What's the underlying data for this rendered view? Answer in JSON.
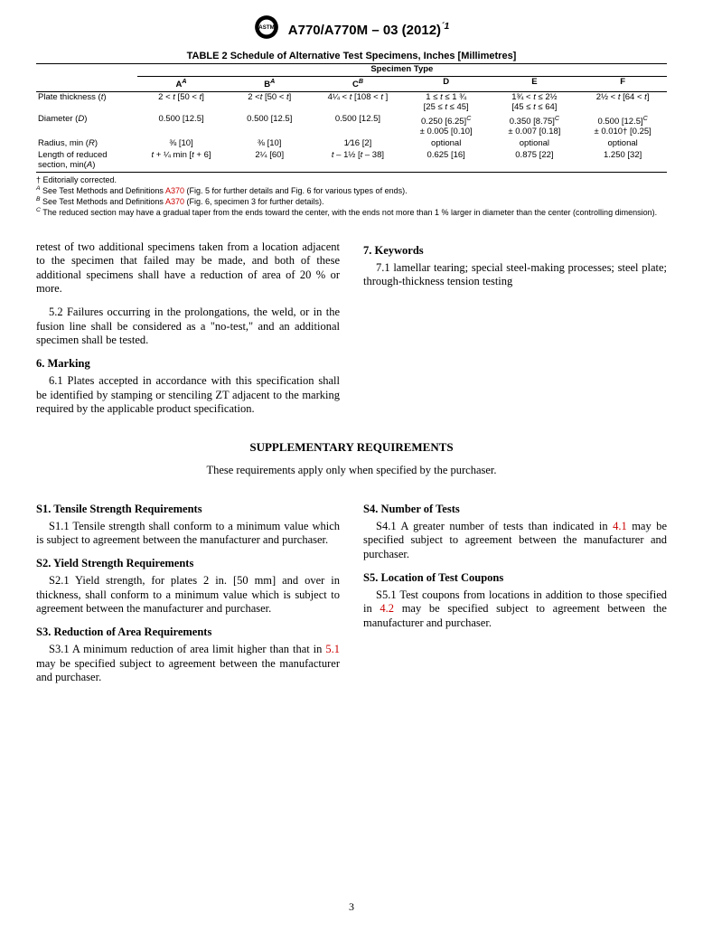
{
  "header": {
    "designation": "A770/A770M – 03 (2012)",
    "epsilon": "´1"
  },
  "table": {
    "title": "TABLE 2 Schedule of Alternative Test Specimens, Inches [Millimetres]",
    "group_header": "Specimen Type",
    "cols": [
      "A",
      "B",
      "C",
      "D",
      "E",
      "F"
    ],
    "col_sup": [
      "A",
      "A",
      "B",
      "",
      "",
      ""
    ],
    "rows": [
      {
        "label": "Plate thickness (t)",
        "label_ital": "t",
        "vals": [
          "2 < t [50 < t]",
          "2 <t [50 < t]",
          "4¼ < t [108 < t ]",
          "1 ≤ t ≤ 1 ¾",
          "1¾ < t ≤ 2½",
          "2½ < t [64 < t]"
        ],
        "sub": [
          "",
          "",
          "",
          "[25 ≤ t ≤ 45]",
          "[45 ≤ t ≤ 64]",
          ""
        ]
      },
      {
        "label": "Diameter (D)",
        "label_ital": "D",
        "vals": [
          "0.500 [12.5]",
          "0.500 [12.5]",
          "0.500 [12.5]",
          "0.250 [6.25]ᶜ",
          "0.350 [8.75]ᶜ",
          "0.500 [12.5]ᶜ"
        ],
        "sub": [
          "",
          "",
          "",
          "± 0.005 [0.10]",
          "± 0.007 [0.18]",
          "± 0.010† [0.25]"
        ]
      },
      {
        "label": "Radius, min (R)",
        "label_ital": "R",
        "vals": [
          "⅜ [10]",
          "⅜ [10]",
          "1⁄16 [2]",
          "optional",
          "optional",
          "optional"
        ],
        "sub": [
          "",
          "",
          "",
          "",
          "",
          ""
        ]
      },
      {
        "label": "Length of reduced section, min(A)",
        "label_ital": "A",
        "vals": [
          "t + ¼ min [t + 6]",
          "2¼ [60]",
          "t – 1½ [t – 38]",
          "0.625 [16]",
          "0.875 [22]",
          "1.250 [32]"
        ],
        "sub": [
          "",
          "",
          "",
          "",
          "",
          ""
        ]
      }
    ]
  },
  "footnotes": {
    "dagger": "† Editorially corrected.",
    "a": " See Test Methods and Definitions ",
    "a_ref": "A370",
    "a_tail": " (Fig. 5 for further details and Fig. 6 for various types of ends).",
    "b": " See Test Methods and Definitions ",
    "b_ref": "A370",
    "b_tail": " (Fig. 6, specimen 3 for further details).",
    "c": " The reduced section may have a gradual taper from the ends toward the center, with the ends not more than 1 % larger in diameter than the center (controlling dimension)."
  },
  "body": {
    "left": {
      "p1": "retest of two additional specimens taken from a location adjacent to the specimen that failed may be made, and both of these additional specimens shall have a reduction of area of 20 % or more.",
      "p2": "5.2 Failures occurring in the prolongations, the weld, or in the fusion line shall be considered as a \"no-test,\" and an additional specimen shall be tested.",
      "h6": "6. Marking",
      "p3": "6.1 Plates accepted in accordance with this specification shall be identified by stamping or stenciling ZT adjacent to the marking required by the applicable product specification."
    },
    "right": {
      "h7": "7. Keywords",
      "p1": "7.1 lamellar tearing; special steel-making processes; steel plate; through-thickness tension testing"
    }
  },
  "supplementary": {
    "title": "SUPPLEMENTARY REQUIREMENTS",
    "intro": "These requirements apply only when specified by the purchaser.",
    "left": {
      "s1h": "S1. Tensile Strength Requirements",
      "s1p": "S1.1 Tensile strength shall conform to a minimum value which is subject to agreement between the manufacturer and purchaser.",
      "s2h": "S2. Yield Strength Requirements",
      "s2p": "S2.1 Yield strength, for plates 2 in. [50 mm] and over in thickness, shall conform to a minimum value which is subject to agreement between the manufacturer and purchaser.",
      "s3h": "S3. Reduction of Area Requirements",
      "s3p_a": "S3.1 A minimum reduction of area limit higher than that in ",
      "s3ref": "5.1",
      "s3p_b": " may be specified subject to agreement between the manufacturer and purchaser."
    },
    "right": {
      "s4h": "S4. Number of Tests",
      "s4p_a": "S4.1 A greater number of tests than indicated in ",
      "s4ref": "4.1",
      "s4p_b": " may be specified subject to agreement between the manufacturer and purchaser.",
      "s5h": "S5. Location of Test Coupons",
      "s5p_a": "S5.1 Test coupons from locations in addition to those specified in ",
      "s5ref": "4.2",
      "s5p_b": " may be specified subject to agreement between the manufacturer and purchaser."
    }
  },
  "pagenum": "3"
}
